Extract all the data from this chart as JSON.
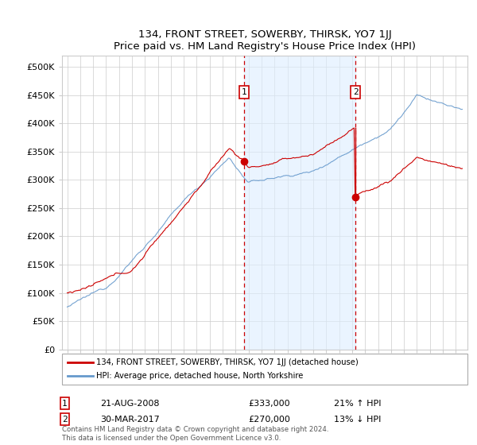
{
  "title": "134, FRONT STREET, SOWERBY, THIRSK, YO7 1JJ",
  "subtitle": "Price paid vs. HM Land Registry's House Price Index (HPI)",
  "legend_line1": "134, FRONT STREET, SOWERBY, THIRSK, YO7 1JJ (detached house)",
  "legend_line2": "HPI: Average price, detached house, North Yorkshire",
  "annotation1_label": "1",
  "annotation1_date": "21-AUG-2008",
  "annotation1_price": "£333,000",
  "annotation1_hpi": "21% ↑ HPI",
  "annotation2_label": "2",
  "annotation2_date": "30-MAR-2017",
  "annotation2_price": "£270,000",
  "annotation2_hpi": "13% ↓ HPI",
  "footnote": "Contains HM Land Registry data © Crown copyright and database right 2024.\nThis data is licensed under the Open Government Licence v3.0.",
  "ylim_max": 520000,
  "sale1_year": 2008.64,
  "sale1_price": 333000,
  "sale2_year": 2017.25,
  "sale2_price": 270000,
  "red_color": "#cc0000",
  "blue_color": "#6699cc",
  "shading_color": "#ddeeff",
  "background_color": "#ffffff",
  "grid_color": "#cccccc",
  "annotation_box_edge": "#cc0000"
}
